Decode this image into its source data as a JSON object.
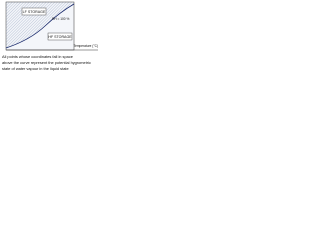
{
  "figure": {
    "labels": [
      "LF STORAGE",
      "HF STORAGE",
      "RH = 100 %",
      "Temperature (°C)"
    ],
    "caption": [
      "All points whose coordinates fall in space",
      "above the curve represent the potential hygrometric",
      "state of water vapour in the liquid state"
    ]
  }
}
